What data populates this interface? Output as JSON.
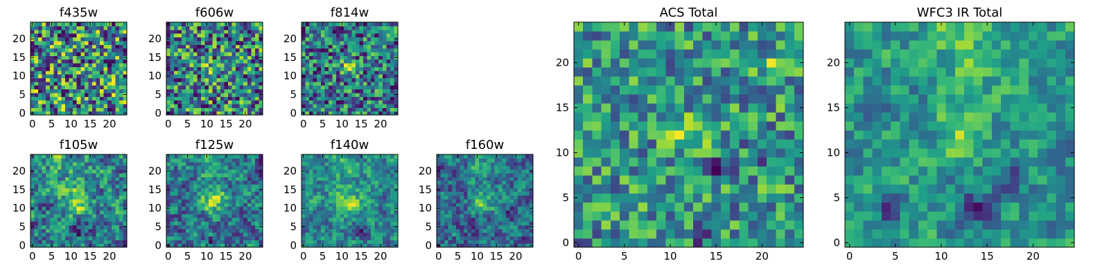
{
  "chart_data": [
    {
      "type": "heatmap",
      "title": "f435w",
      "colormap": "viridis",
      "grid_size": 25,
      "xlim": [
        0,
        24
      ],
      "ylim": [
        0,
        24
      ],
      "xticks": [
        "0",
        "5",
        "10",
        "15",
        "20"
      ],
      "yticks": [
        "0",
        "5",
        "10",
        "15",
        "20"
      ],
      "seed": 11,
      "smooth": 0,
      "bright": [],
      "dark": [],
      "gain": 1.0
    },
    {
      "type": "heatmap",
      "title": "f606w",
      "colormap": "viridis",
      "grid_size": 25,
      "xlim": [
        0,
        24
      ],
      "ylim": [
        0,
        24
      ],
      "xticks": [
        "0",
        "5",
        "10",
        "15",
        "20"
      ],
      "yticks": [
        "0",
        "5",
        "10",
        "15",
        "20"
      ],
      "seed": 23,
      "smooth": 0,
      "bright": [
        [
          12,
          12,
          1.5,
          0.35
        ]
      ],
      "dark": [],
      "gain": 1.0
    },
    {
      "type": "heatmap",
      "title": "f814w",
      "colormap": "viridis",
      "grid_size": 25,
      "xlim": [
        0,
        24
      ],
      "ylim": [
        0,
        24
      ],
      "xticks": [
        "0",
        "5",
        "10",
        "15",
        "20"
      ],
      "yticks": [
        "0",
        "5",
        "10",
        "15",
        "20"
      ],
      "seed": 37,
      "smooth": 0,
      "bright": [
        [
          12,
          12,
          1.5,
          0.45
        ]
      ],
      "dark": [],
      "gain": 1.0
    },
    {
      "type": "heatmap",
      "title": "f105w",
      "colormap": "viridis",
      "grid_size": 25,
      "xlim": [
        0,
        24
      ],
      "ylim": [
        0,
        24
      ],
      "xticks": [
        "0",
        "5",
        "10",
        "15",
        "20"
      ],
      "yticks": [
        "0",
        "5",
        "10",
        "15",
        "20"
      ],
      "seed": 41,
      "smooth": 1,
      "bright": [
        [
          12,
          12,
          2.5,
          0.45
        ],
        [
          11,
          22,
          4,
          0.2
        ]
      ],
      "dark": [
        [
          13,
          4,
          1.5,
          0.4
        ]
      ],
      "gain": 1.0
    },
    {
      "type": "heatmap",
      "title": "f125w",
      "colormap": "viridis",
      "grid_size": 25,
      "xlim": [
        0,
        24
      ],
      "ylim": [
        0,
        24
      ],
      "xticks": [
        "0",
        "5",
        "10",
        "15",
        "20"
      ],
      "yticks": [
        "0",
        "5",
        "10",
        "15",
        "20"
      ],
      "seed": 53,
      "smooth": 1,
      "bright": [
        [
          12,
          12,
          2.5,
          0.45
        ],
        [
          11,
          22,
          4,
          0.2
        ]
      ],
      "dark": [
        [
          12,
          1,
          1,
          0.5
        ]
      ],
      "gain": 1.0
    },
    {
      "type": "heatmap",
      "title": "f140w",
      "colormap": "viridis",
      "grid_size": 25,
      "xlim": [
        0,
        24
      ],
      "ylim": [
        0,
        24
      ],
      "xticks": [
        "0",
        "5",
        "10",
        "15",
        "20"
      ],
      "yticks": [
        "0",
        "5",
        "10",
        "15",
        "20"
      ],
      "seed": 67,
      "smooth": 1,
      "bright": [
        [
          12,
          12,
          2.5,
          0.45
        ],
        [
          11,
          22,
          4,
          0.2
        ]
      ],
      "dark": [
        [
          14,
          4,
          1.2,
          0.5
        ]
      ],
      "gain": 1.0
    },
    {
      "type": "heatmap",
      "title": "f160w",
      "colormap": "viridis",
      "grid_size": 25,
      "xlim": [
        0,
        24
      ],
      "ylim": [
        0,
        24
      ],
      "xticks": [
        "0",
        "5",
        "10",
        "15",
        "20"
      ],
      "yticks": [
        "0",
        "5",
        "10",
        "15",
        "20"
      ],
      "seed": 79,
      "smooth": 1,
      "bright": [
        [
          12,
          12,
          2.5,
          0.45
        ],
        [
          11,
          22,
          4,
          0.2
        ]
      ],
      "dark": [
        [
          5,
          15,
          1.5,
          0.3
        ],
        [
          18,
          8,
          1.5,
          0.3
        ]
      ],
      "gain": 0.85
    },
    {
      "type": "heatmap",
      "title": "ACS Total",
      "colormap": "viridis",
      "grid_size": 25,
      "xlim": [
        0,
        24
      ],
      "ylim": [
        0,
        24
      ],
      "xticks": [
        "0",
        "5",
        "10",
        "15",
        "20"
      ],
      "yticks": [
        "0",
        "5",
        "10",
        "15",
        "20"
      ],
      "seed": 97,
      "smooth": 0,
      "bright": [
        [
          12,
          12,
          1.5,
          0.45
        ],
        [
          22,
          20,
          1,
          0.4
        ]
      ],
      "dark": [
        [
          15,
          8,
          1,
          0.5
        ],
        [
          20,
          10,
          1,
          0.5
        ],
        [
          14,
          1,
          1,
          0.5
        ],
        [
          0,
          0,
          0.7,
          0.6
        ]
      ],
      "gain": 1.0
    },
    {
      "type": "heatmap",
      "title": "WFC3 IR Total",
      "colormap": "viridis",
      "grid_size": 25,
      "xlim": [
        0,
        24
      ],
      "ylim": [
        0,
        24
      ],
      "xticks": [
        "0",
        "5",
        "10",
        "15",
        "20"
      ],
      "yticks": [
        "0",
        "5",
        "10",
        "15",
        "20"
      ],
      "seed": 113,
      "smooth": 1,
      "bright": [
        [
          12,
          12,
          2,
          0.45
        ],
        [
          13,
          23,
          4,
          0.3
        ]
      ],
      "dark": [
        [
          14,
          4,
          1.5,
          0.45
        ],
        [
          18,
          7,
          1,
          0.4
        ],
        [
          4,
          4,
          1,
          0.4
        ],
        [
          7,
          15,
          1.5,
          0.25
        ]
      ],
      "gain": 0.9
    }
  ]
}
